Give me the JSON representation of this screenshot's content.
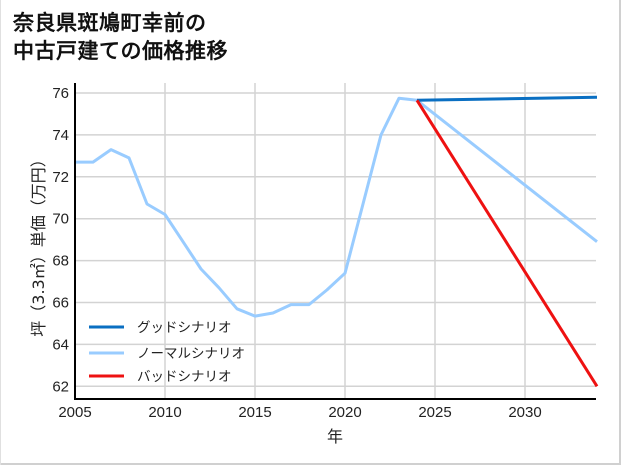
{
  "title_line1": "奈良県斑鳩町幸前の",
  "title_line2": "中古戸建ての価格推移",
  "chart_data": {
    "type": "line",
    "title": "奈良県斑鳩町幸前の中古戸建ての価格推移",
    "xlabel": "年",
    "ylabel": "坪（3.3㎡）単価（万円）",
    "xlim": [
      2005,
      2034
    ],
    "ylim": [
      61.7,
      76.5
    ],
    "xticks": [
      2005,
      2010,
      2015,
      2020,
      2025,
      2030
    ],
    "yticks": [
      62,
      64,
      66,
      68,
      70,
      72,
      74,
      76
    ],
    "grid": true,
    "legend_position": "lower left",
    "series": [
      {
        "name": "グッドシナリオ",
        "color": "#0a6fc2",
        "x": [
          2024,
          2034
        ],
        "values": [
          75.65,
          75.8
        ]
      },
      {
        "name": "ノーマルシナリオ",
        "color": "#99ccff",
        "x": [
          2005,
          2006,
          2007,
          2008,
          2009,
          2010,
          2011,
          2012,
          2013,
          2014,
          2015,
          2016,
          2017,
          2018,
          2019,
          2020,
          2021,
          2022,
          2023,
          2024,
          2034
        ],
        "values": [
          72.7,
          72.7,
          73.3,
          72.9,
          70.7,
          70.2,
          68.9,
          67.6,
          66.7,
          65.7,
          65.35,
          65.5,
          65.9,
          65.9,
          66.6,
          67.4,
          70.7,
          74.0,
          75.75,
          75.65,
          68.9
        ]
      },
      {
        "name": "バッドシナリオ",
        "color": "#ee1111",
        "x": [
          2024,
          2034
        ],
        "values": [
          75.65,
          62.0
        ]
      }
    ]
  }
}
